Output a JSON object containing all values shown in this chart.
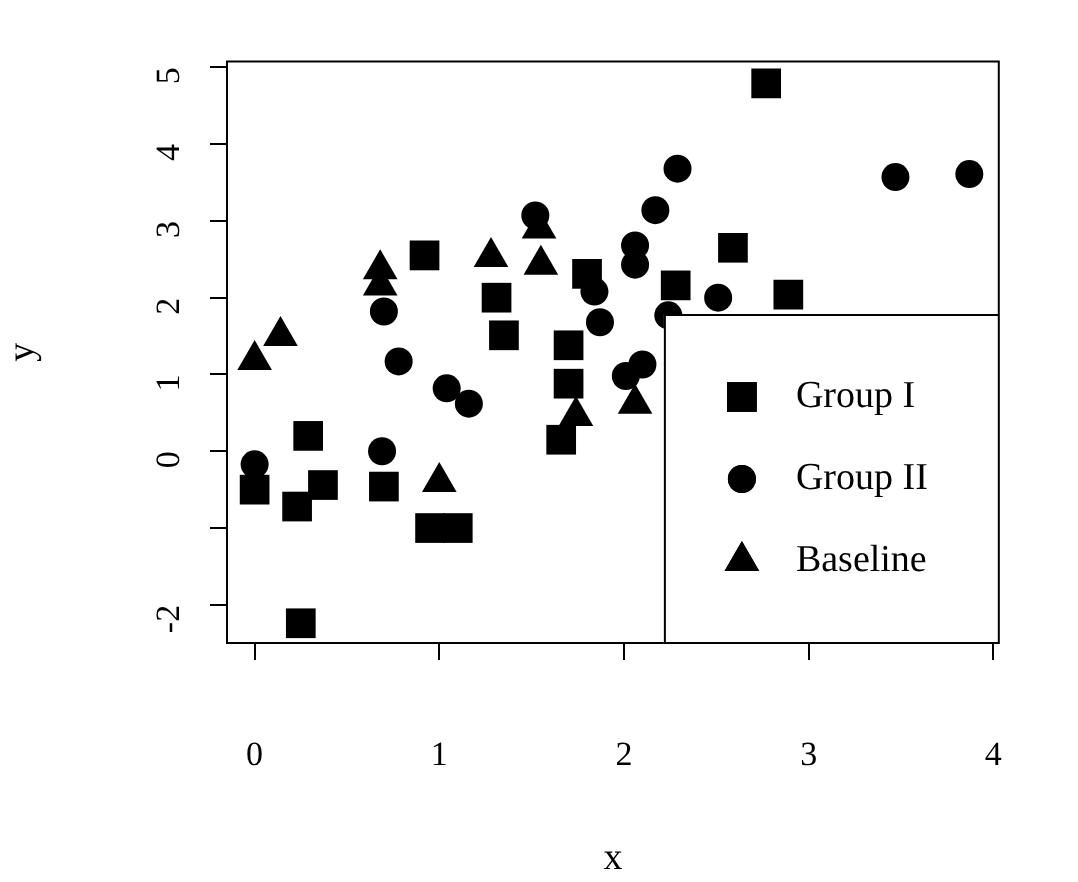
{
  "chart_data": {
    "type": "scatter",
    "xlabel": "x",
    "ylabel": "y",
    "xlim": [
      -0.155,
      4.035
    ],
    "ylim": [
      -2.51,
      5.09
    ],
    "xticks": [
      0,
      1,
      2,
      3,
      4
    ],
    "yticks": [
      {
        "value": -2,
        "label": "-2"
      },
      {
        "value": -1,
        "label": null
      },
      0,
      1,
      2,
      3,
      4,
      5
    ],
    "grid": false,
    "legend": "bottom right",
    "series": [
      {
        "name": "Group I",
        "color": "#000000",
        "marker": "square",
        "x": [
          0,
          0.23,
          0.29,
          0.37,
          0.7,
          0.92,
          0.95,
          1.1,
          0.25,
          1.31,
          1.35,
          2.77,
          2.59,
          2.89,
          2.28,
          1.8,
          1.7,
          1.7,
          1.66
        ],
        "values": [
          -0.5,
          -0.72,
          0.2,
          -0.44,
          -0.46,
          2.55,
          -1.0,
          -1.0,
          -2.24,
          2.0,
          1.51,
          4.79,
          2.65,
          2.04,
          2.16,
          2.31,
          1.38,
          0.88,
          0.15
        ]
      },
      {
        "name": "Group II",
        "color": "#000000",
        "marker": "circle",
        "x": [
          0,
          0.7,
          0.78,
          0.69,
          1.04,
          1.16,
          2.29,
          2.17,
          2.06,
          2.06,
          1.84,
          1.87,
          1.52,
          2.24,
          2.51,
          2.01,
          2.1,
          3.47,
          3.87
        ],
        "values": [
          -0.17,
          1.82,
          1.17,
          0,
          0.82,
          0.62,
          3.68,
          3.14,
          2.68,
          2.43,
          2.08,
          1.68,
          3.07,
          1.77,
          2.0,
          0.98,
          1.13,
          3.57,
          3.61
        ]
      },
      {
        "name": "Baseline",
        "color": "#000000",
        "marker": "triangle",
        "x": [
          0,
          0.14,
          0.68,
          0.68,
          1.0,
          1.28,
          1.54,
          1.55,
          1.74,
          2.06
        ],
        "values": [
          1.19,
          1.5,
          2.37,
          2.16,
          -0.4,
          2.53,
          2.9,
          2.43,
          0.46,
          0.62
        ]
      }
    ]
  }
}
